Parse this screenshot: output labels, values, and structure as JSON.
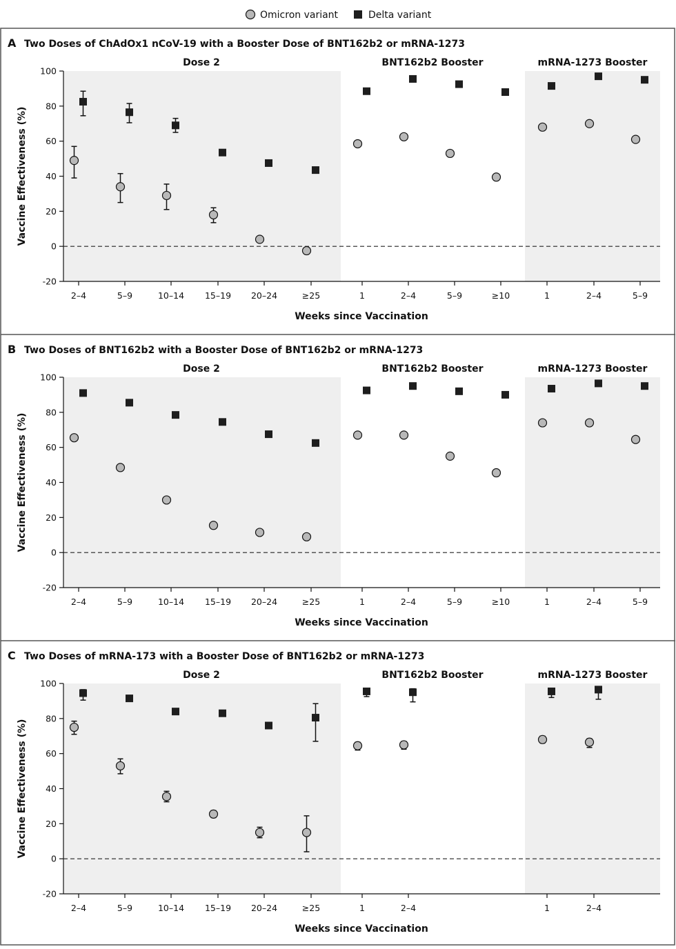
{
  "legend": {
    "omicron": "Omicron variant",
    "delta": "Delta variant"
  },
  "colors": {
    "shade": "#efefef",
    "omicron_fill": "#b8b8b8",
    "delta_fill": "#1e1e1e",
    "frame": "#555555"
  },
  "chart_data": [
    {
      "type": "scatter",
      "letter": "A",
      "title": "Two Doses of ChAdOx1 nCoV-19 with a Booster Dose of BNT162b2 or mRNA-1273",
      "ylabel": "Vaccine Effectiveness (%)",
      "xlabel": "Weeks since Vaccination",
      "ylim": [
        -20,
        100
      ],
      "yticks": [
        -20,
        0,
        20,
        40,
        60,
        80,
        100
      ],
      "reference_line": 0,
      "sections": [
        {
          "label": "Dose 2",
          "shaded": true,
          "categories": [
            "2–4",
            "5–9",
            "10–14",
            "15–19",
            "20–24",
            "≥25"
          ]
        },
        {
          "label": "BNT162b2 Booster",
          "shaded": false,
          "categories": [
            "1",
            "2–4",
            "5–9",
            "≥10"
          ]
        },
        {
          "label": "mRNA-1273 Booster",
          "shaded": true,
          "categories": [
            "1",
            "2–4",
            "5–9"
          ]
        }
      ],
      "series": [
        {
          "name": "Omicron variant",
          "marker": "circle",
          "values": [
            [
              [
                49,
                39,
                57
              ],
              [
                34,
                25,
                41.5
              ],
              [
                29,
                21,
                35.5
              ],
              [
                18,
                13.5,
                22
              ],
              [
                4,
                null,
                null
              ],
              [
                -2.5,
                null,
                null
              ]
            ],
            [
              [
                58.5,
                null,
                null
              ],
              [
                62.5,
                null,
                null
              ],
              [
                53,
                null,
                null
              ],
              [
                39.5,
                null,
                null
              ]
            ],
            [
              [
                68,
                null,
                null
              ],
              [
                70,
                null,
                null
              ],
              [
                61,
                null,
                null
              ]
            ]
          ]
        },
        {
          "name": "Delta variant",
          "marker": "square",
          "values": [
            [
              [
                82.5,
                74.5,
                88.5
              ],
              [
                76.5,
                70.5,
                81.5
              ],
              [
                69,
                65,
                73
              ],
              [
                53.5,
                null,
                null
              ],
              [
                47.5,
                null,
                null
              ],
              [
                43.5,
                null,
                null
              ]
            ],
            [
              [
                88.5,
                null,
                null
              ],
              [
                95.5,
                null,
                null
              ],
              [
                92.5,
                null,
                null
              ],
              [
                88,
                null,
                null
              ]
            ],
            [
              [
                91.5,
                null,
                null
              ],
              [
                97,
                null,
                null
              ],
              [
                95,
                null,
                null
              ]
            ]
          ]
        }
      ]
    },
    {
      "type": "scatter",
      "letter": "B",
      "title": "Two Doses of BNT162b2 with a Booster Dose of BNT162b2 or mRNA-1273",
      "ylabel": "Vaccine Effectiveness (%)",
      "xlabel": "Weeks since Vaccination",
      "ylim": [
        -20,
        100
      ],
      "yticks": [
        -20,
        0,
        20,
        40,
        60,
        80,
        100
      ],
      "reference_line": 0,
      "sections": [
        {
          "label": "Dose 2",
          "shaded": true,
          "categories": [
            "2–4",
            "5–9",
            "10–14",
            "15–19",
            "20–24",
            "≥25"
          ]
        },
        {
          "label": "BNT162b2 Booster",
          "shaded": false,
          "categories": [
            "1",
            "2–4",
            "5–9",
            "≥10"
          ]
        },
        {
          "label": "mRNA-1273 Booster",
          "shaded": true,
          "categories": [
            "1",
            "2–4",
            "5–9"
          ]
        }
      ],
      "series": [
        {
          "name": "Omicron variant",
          "marker": "circle",
          "values": [
            [
              [
                65.5,
                null,
                null
              ],
              [
                48.5,
                null,
                null
              ],
              [
                30,
                null,
                null
              ],
              [
                15.5,
                null,
                null
              ],
              [
                11.5,
                null,
                null
              ],
              [
                9,
                null,
                null
              ]
            ],
            [
              [
                67,
                null,
                null
              ],
              [
                67,
                null,
                null
              ],
              [
                55,
                null,
                null
              ],
              [
                45.5,
                null,
                null
              ]
            ],
            [
              [
                74,
                null,
                null
              ],
              [
                74,
                null,
                null
              ],
              [
                64.5,
                null,
                null
              ]
            ]
          ]
        },
        {
          "name": "Delta variant",
          "marker": "square",
          "values": [
            [
              [
                91,
                null,
                null
              ],
              [
                85.5,
                null,
                null
              ],
              [
                78.5,
                null,
                null
              ],
              [
                74.5,
                null,
                null
              ],
              [
                67.5,
                null,
                null
              ],
              [
                62.5,
                null,
                null
              ]
            ],
            [
              [
                92.5,
                null,
                null
              ],
              [
                95,
                null,
                null
              ],
              [
                92,
                null,
                null
              ],
              [
                90,
                null,
                null
              ]
            ],
            [
              [
                93.5,
                null,
                null
              ],
              [
                96.5,
                null,
                null
              ],
              [
                95,
                null,
                null
              ]
            ]
          ]
        }
      ]
    },
    {
      "type": "scatter",
      "letter": "C",
      "title": "Two Doses of mRNA-173 with a Booster Dose of BNT162b2 or mRNA-1273",
      "ylabel": "Vaccine Effectiveness (%)",
      "xlabel": "Weeks since Vaccination",
      "ylim": [
        -20,
        100
      ],
      "yticks": [
        -20,
        0,
        20,
        40,
        60,
        80,
        100
      ],
      "reference_line": 0,
      "sections": [
        {
          "label": "Dose 2",
          "shaded": true,
          "categories": [
            "2–4",
            "5–9",
            "10–14",
            "15–19",
            "20–24",
            "≥25"
          ]
        },
        {
          "label": "BNT162b2 Booster",
          "shaded": false,
          "categories": [
            "1",
            "2–4",
            "",
            ""
          ]
        },
        {
          "label": "mRNA-1273 Booster",
          "shaded": true,
          "categories": [
            "1",
            "2–4",
            ""
          ]
        }
      ],
      "series": [
        {
          "name": "Omicron variant",
          "marker": "circle",
          "values": [
            [
              [
                75,
                71,
                78.5
              ],
              [
                53,
                48.5,
                57
              ],
              [
                35.5,
                32.5,
                38.5
              ],
              [
                25.5,
                23.5,
                27.5
              ],
              [
                15,
                12,
                18
              ],
              [
                15,
                4,
                24.5
              ]
            ],
            [
              [
                64.5,
                62,
                66.5
              ],
              [
                65,
                62.5,
                67
              ],
              null,
              null
            ],
            [
              [
                68,
                66,
                70
              ],
              [
                66.5,
                63.5,
                68.5
              ],
              null
            ]
          ]
        },
        {
          "name": "Delta variant",
          "marker": "square",
          "values": [
            [
              [
                94.5,
                90.5,
                96.5
              ],
              [
                91.5,
                90,
                93
              ],
              [
                84,
                null,
                null
              ],
              [
                83,
                null,
                null
              ],
              [
                76,
                null,
                null
              ],
              [
                80.5,
                67,
                88.5
              ]
            ],
            [
              [
                95.5,
                92.5,
                96.5
              ],
              [
                95,
                89.5,
                97
              ],
              null,
              null
            ],
            [
              [
                95.5,
                92,
                97
              ],
              [
                96.5,
                91,
                98
              ],
              null
            ]
          ]
        }
      ]
    }
  ]
}
